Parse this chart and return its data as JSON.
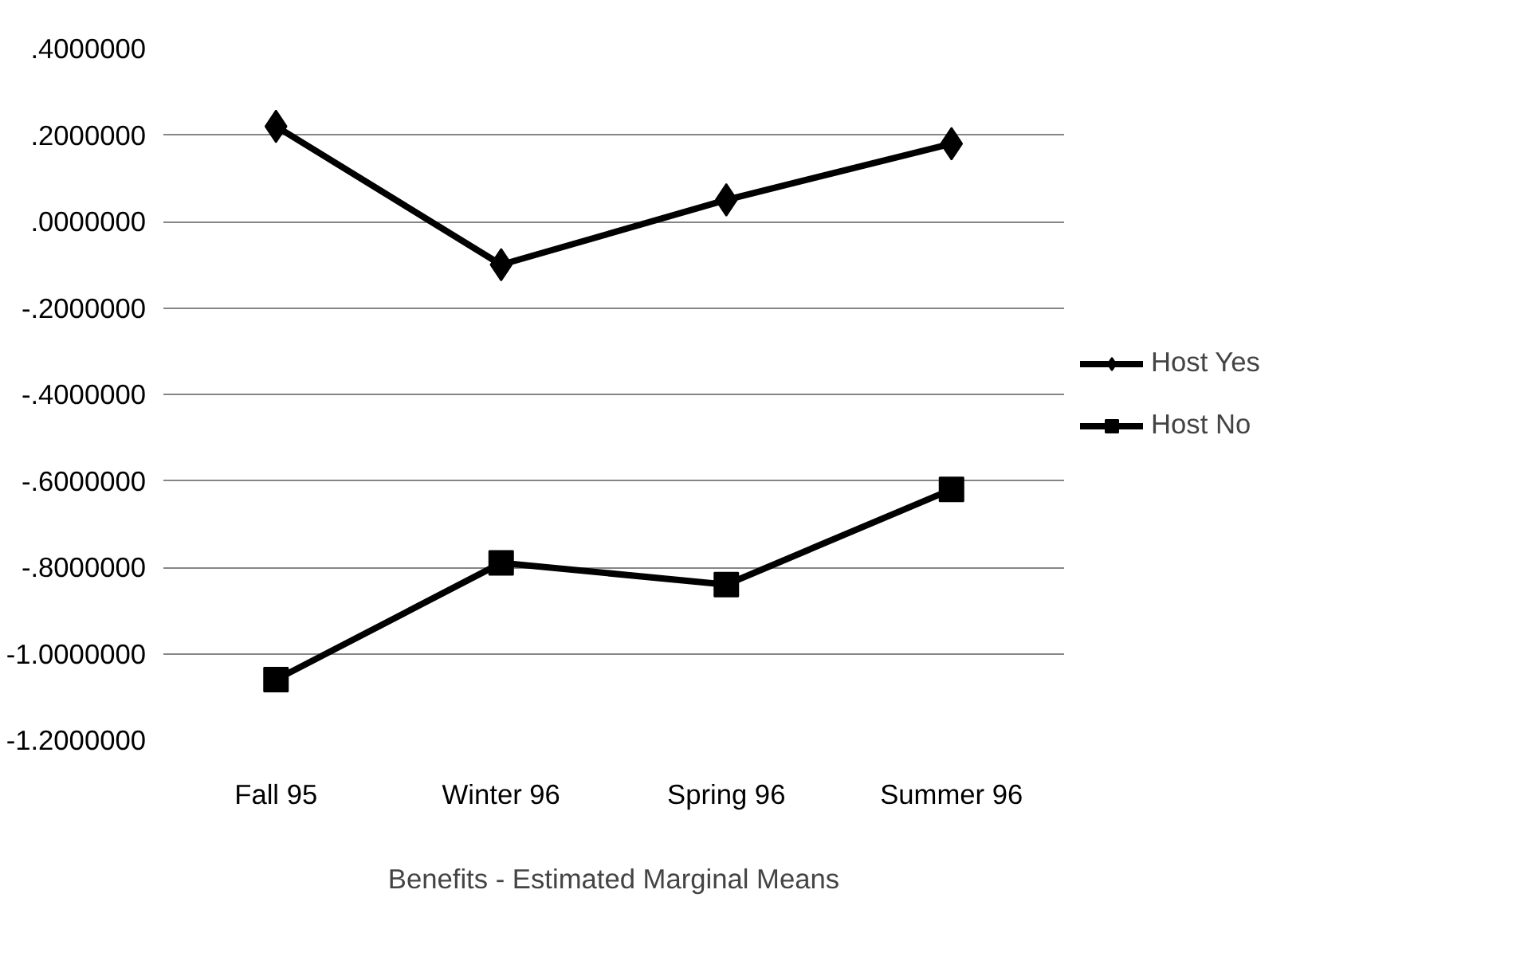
{
  "chart_data": {
    "type": "line",
    "xlabel": "Benefits - Estimated Marginal Means",
    "categories": [
      "Fall 95",
      "Winter 96",
      "Spring 96",
      "Summer 96"
    ],
    "series": [
      {
        "name": "Host Yes",
        "color": "#000000",
        "marker": "diamond",
        "values": [
          0.22,
          -0.1,
          0.05,
          0.18
        ]
      },
      {
        "name": "Host No",
        "color": "#000000",
        "marker": "square",
        "values": [
          -1.06,
          -0.79,
          -0.84,
          -0.62
        ]
      }
    ],
    "ylim": [
      -1.2,
      0.4
    ],
    "yticks": [
      {
        "value": 0.4,
        "label": ".4000000"
      },
      {
        "value": 0.2,
        "label": ".2000000"
      },
      {
        "value": 0.0,
        "label": ".0000000"
      },
      {
        "value": -0.2,
        "label": "-.2000000"
      },
      {
        "value": -0.4,
        "label": "-.4000000"
      },
      {
        "value": -0.6,
        "label": "-.6000000"
      },
      {
        "value": -0.8,
        "label": "-.8000000"
      },
      {
        "value": -1.0,
        "label": "-1.0000000"
      },
      {
        "value": -1.2,
        "label": "-1.2000000"
      }
    ],
    "grid": "y",
    "legend": "right",
    "line_style": "solid"
  }
}
